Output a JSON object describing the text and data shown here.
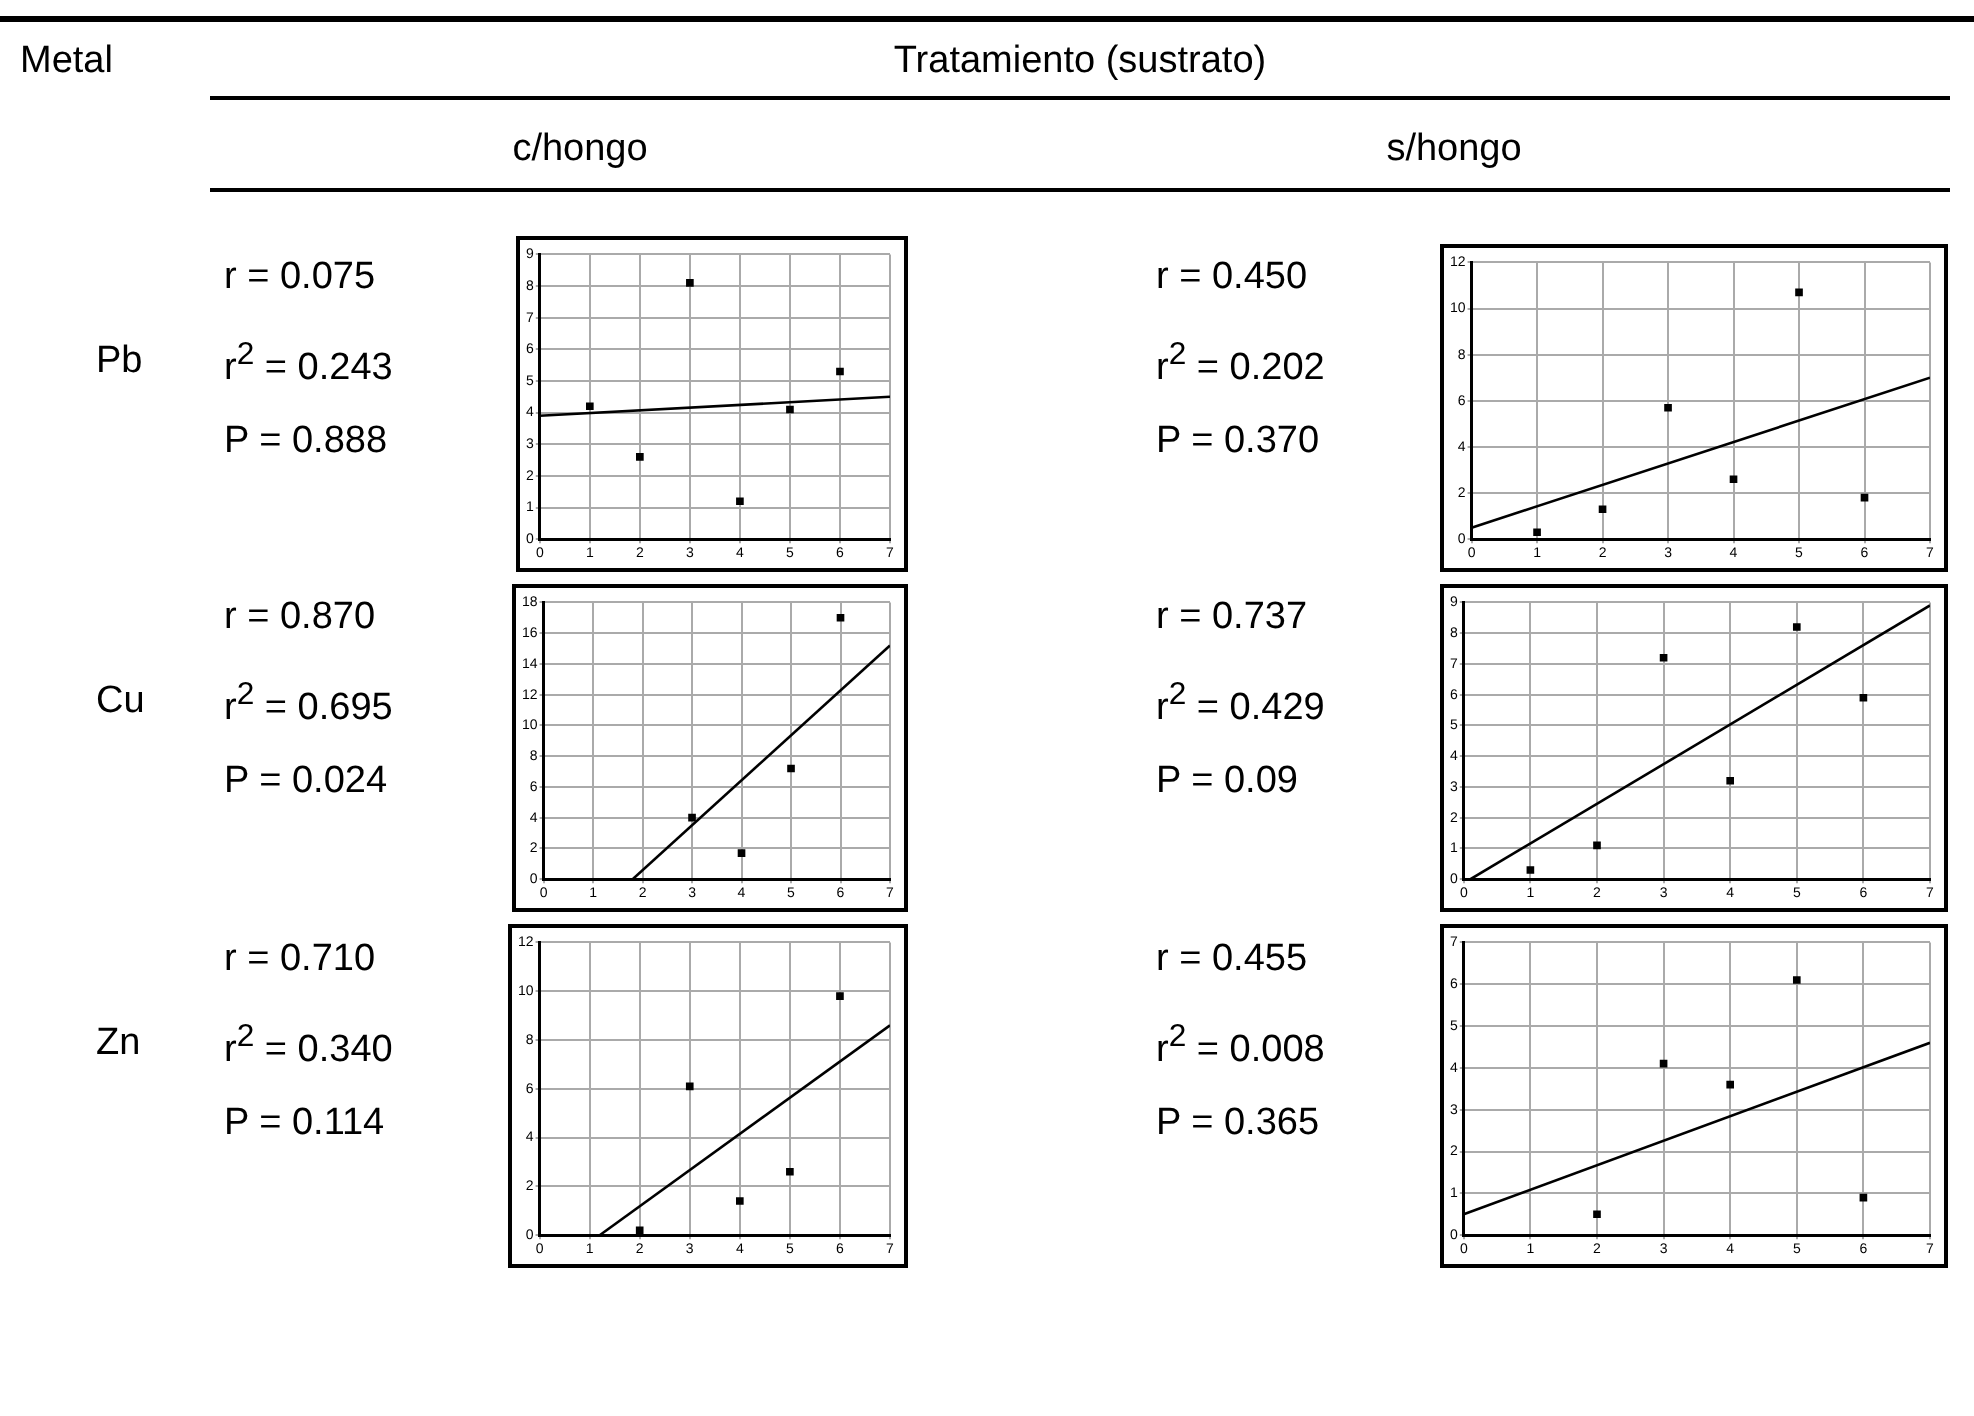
{
  "chart_data": [
    {
      "type": "scatter",
      "title": "c/hongo",
      "annotations": [
        "Metal",
        "Tratamiento (sustrato)",
        "Pb",
        "r = 0.075",
        "r$^{2}$ = 0.243",
        "P = 0.888"
      ],
      "xlim": [
        0,
        7
      ],
      "xticks": [
        0,
        1,
        2,
        3,
        4,
        5,
        6,
        7
      ],
      "ylim": [
        0,
        9
      ],
      "yticks": [
        0,
        1,
        2,
        3,
        4,
        5,
        6,
        7,
        8,
        9
      ],
      "grid": true,
      "series": [
        {
          "type": "scatter",
          "marker": "square",
          "color": "#000000",
          "x": [
            1,
            2,
            3,
            4,
            5,
            6
          ],
          "values": [
            4.2,
            2.6,
            8.1,
            1.2,
            4.1,
            5.3
          ]
        },
        {
          "type": "line",
          "marker": "none",
          "color": "#000000",
          "x": [
            0,
            7
          ],
          "values": [
            3.9,
            4.5
          ]
        }
      ]
    },
    {
      "type": "scatter",
      "title": "s/hongo",
      "annotations": [
        "r = 0.450",
        "r$^{2}$ = 0.202",
        "P = 0.370"
      ],
      "xlim": [
        0,
        7
      ],
      "xticks": [
        0,
        1,
        2,
        3,
        4,
        5,
        6,
        7
      ],
      "ylim": [
        0,
        12
      ],
      "yticks": [
        0,
        2,
        4,
        6,
        8,
        10,
        12
      ],
      "grid": true,
      "series": [
        {
          "type": "scatter",
          "marker": "square",
          "color": "#000000",
          "x": [
            1,
            2,
            3,
            4,
            5,
            6
          ],
          "values": [
            0.3,
            1.3,
            5.7,
            2.6,
            10.7,
            1.8
          ]
        },
        {
          "type": "line",
          "marker": "none",
          "color": "#000000",
          "x": [
            0,
            7
          ],
          "values": [
            0.5,
            7
          ]
        }
      ]
    },
    {
      "type": "scatter",
      "annotations": [
        "Cu",
        "r = 0.870",
        "r$^{2}$ = 0.695",
        "P = 0.024"
      ],
      "xlim": [
        0,
        7
      ],
      "xticks": [
        0,
        1,
        2,
        3,
        4,
        5,
        6,
        7
      ],
      "ylim": [
        0,
        18
      ],
      "yticks": [
        0,
        2,
        4,
        6,
        8,
        10,
        12,
        14,
        16,
        18
      ],
      "grid": true,
      "series": [
        {
          "type": "scatter",
          "marker": "square",
          "color": "#000000",
          "x": [
            3,
            4,
            5,
            6
          ],
          "values": [
            4,
            1.7,
            7.2,
            17
          ]
        },
        {
          "type": "line",
          "marker": "none",
          "color": "#000000",
          "x": [
            1.8,
            7
          ],
          "values": [
            0,
            15.2
          ]
        }
      ]
    },
    {
      "type": "scatter",
      "annotations": [
        "r = 0.737",
        "r$^{2}$ = 0.429",
        "P = 0.09"
      ],
      "xlim": [
        0,
        7
      ],
      "xticks": [
        0,
        1,
        2,
        3,
        4,
        5,
        6,
        7
      ],
      "ylim": [
        0,
        9
      ],
      "yticks": [
        0,
        1,
        2,
        3,
        4,
        5,
        6,
        7,
        8,
        9
      ],
      "grid": true,
      "series": [
        {
          "type": "scatter",
          "marker": "square",
          "color": "#000000",
          "x": [
            1,
            2,
            3,
            4,
            5,
            6
          ],
          "values": [
            0.3,
            1.1,
            7.2,
            3.2,
            8.2,
            5.9
          ]
        },
        {
          "type": "line",
          "marker": "none",
          "color": "#000000",
          "x": [
            0.1,
            7
          ],
          "values": [
            0,
            8.9
          ]
        }
      ]
    },
    {
      "type": "scatter",
      "annotations": [
        "Zn",
        "r = 0.710",
        "r$^{2}$ = 0.340",
        "P = 0.114"
      ],
      "xlim": [
        0,
        7
      ],
      "xticks": [
        0,
        1,
        2,
        3,
        4,
        5,
        6,
        7
      ],
      "ylim": [
        0,
        12
      ],
      "yticks": [
        0,
        2,
        4,
        6,
        8,
        10,
        12
      ],
      "grid": true,
      "series": [
        {
          "type": "scatter",
          "marker": "square",
          "color": "#000000",
          "x": [
            2,
            3,
            4,
            5,
            6
          ],
          "values": [
            0.2,
            6.1,
            1.4,
            2.6,
            9.8
          ]
        },
        {
          "type": "line",
          "marker": "none",
          "color": "#000000",
          "x": [
            1.2,
            7
          ],
          "values": [
            0,
            8.6
          ]
        }
      ]
    },
    {
      "type": "scatter",
      "annotations": [
        "r = 0.455",
        "r$^{2}$ = 0.008",
        "P = 0.365"
      ],
      "xlim": [
        0,
        7
      ],
      "xticks": [
        0,
        1,
        2,
        3,
        4,
        5,
        6,
        7
      ],
      "ylim": [
        0,
        7
      ],
      "yticks": [
        0,
        1,
        2,
        3,
        4,
        5,
        6,
        7
      ],
      "grid": true,
      "series": [
        {
          "type": "scatter",
          "marker": "square",
          "color": "#000000",
          "x": [
            2,
            3,
            4,
            5,
            6
          ],
          "values": [
            0.5,
            4.1,
            3.6,
            6.1,
            0.9
          ]
        },
        {
          "type": "line",
          "marker": "none",
          "color": "#000000",
          "x": [
            0,
            7
          ],
          "values": [
            0.5,
            4.6
          ]
        }
      ]
    }
  ]
}
